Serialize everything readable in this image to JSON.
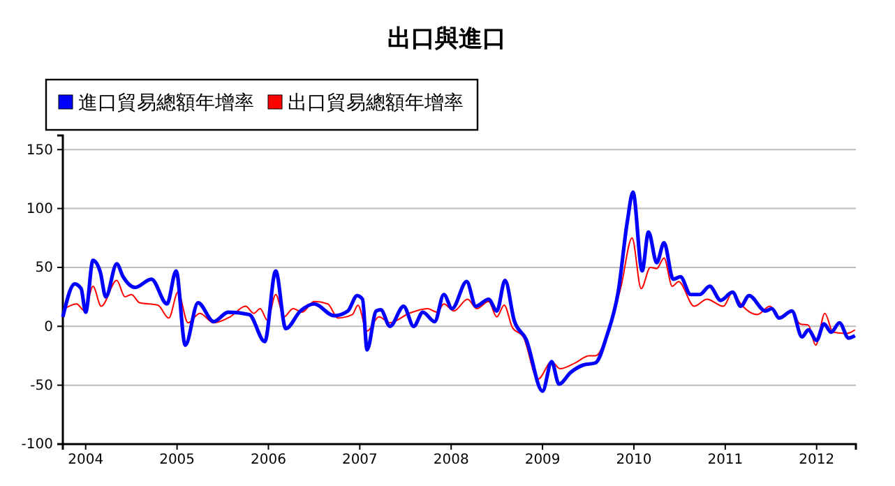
{
  "chart_data": {
    "type": "line",
    "title": "出口與進口",
    "xlim": [
      2003.75,
      2012.43
    ],
    "xticks": [
      2004,
      2005,
      2006,
      2007,
      2008,
      2009,
      2010,
      2011,
      2012
    ],
    "ylim": [
      -100,
      162
    ],
    "yticks": [
      -100,
      -50,
      0,
      50,
      100,
      150
    ],
    "grid": "y",
    "legend": "top left",
    "marker": "none",
    "line_style": "solid",
    "series": [
      {
        "name": "進口貿易總額年增率",
        "color": "#0000ff",
        "x": [
          2003.75,
          2003.88,
          2003.95,
          2004.0,
          2004.08,
          2004.16,
          2004.22,
          2004.34,
          2004.41,
          2004.54,
          2004.72,
          2004.89,
          2004.99,
          2005.09,
          2005.23,
          2005.4,
          2005.56,
          2005.79,
          2005.96,
          2006.08,
          2006.19,
          2006.35,
          2006.5,
          2006.72,
          2006.87,
          2006.97,
          2007.03,
          2007.08,
          2007.18,
          2007.23,
          2007.33,
          2007.48,
          2007.59,
          2007.69,
          2007.82,
          2007.92,
          2008.01,
          2008.17,
          2008.27,
          2008.41,
          2008.5,
          2008.59,
          2008.69,
          2008.82,
          2009.0,
          2009.1,
          2009.18,
          2009.31,
          2009.44,
          2009.58,
          2009.7,
          2009.83,
          2009.93,
          2009.99,
          2010.09,
          2010.16,
          2010.25,
          2010.33,
          2010.43,
          2010.51,
          2010.62,
          2010.72,
          2010.83,
          2010.95,
          2011.08,
          2011.17,
          2011.26,
          2011.44,
          2011.51,
          2011.59,
          2011.73,
          2011.84,
          2011.91,
          2012.0,
          2012.08,
          2012.16,
          2012.25,
          2012.35,
          2012.42
        ],
        "values": [
          8,
          36,
          32,
          12,
          56,
          46,
          25,
          53,
          42,
          33,
          40,
          19,
          47,
          -16,
          20,
          4,
          12,
          10,
          -13,
          47,
          -2,
          13,
          19,
          9,
          13,
          26,
          23,
          -20,
          13,
          14,
          0,
          17,
          0,
          12,
          4,
          27,
          15,
          38,
          17,
          23,
          13,
          39,
          5,
          -11,
          -55,
          -30,
          -49,
          -39,
          -33,
          -31,
          -9,
          30,
          90,
          114,
          47,
          80,
          54,
          71,
          40,
          42,
          27,
          27,
          34,
          22,
          29,
          17,
          26,
          13,
          15,
          7,
          13,
          -9,
          -3,
          -12,
          2,
          -5,
          3,
          -10,
          -8
        ]
      },
      {
        "name": "出口貿易總額年增率",
        "color": "#ff0000",
        "x": [
          2003.75,
          2003.9,
          2003.99,
          2004.08,
          2004.17,
          2004.34,
          2004.43,
          2004.5,
          2004.59,
          2004.79,
          2004.91,
          2005.01,
          2005.12,
          2005.25,
          2005.4,
          2005.58,
          2005.75,
          2005.84,
          2005.91,
          2005.99,
          2006.08,
          2006.17,
          2006.27,
          2006.37,
          2006.5,
          2006.65,
          2006.76,
          2006.92,
          2006.98,
          2007.08,
          2007.21,
          2007.33,
          2007.54,
          2007.74,
          2007.85,
          2007.92,
          2008.03,
          2008.18,
          2008.28,
          2008.41,
          2008.5,
          2008.58,
          2008.67,
          2008.79,
          2008.95,
          2009.1,
          2009.19,
          2009.36,
          2009.51,
          2009.58,
          2009.7,
          2009.86,
          2009.98,
          2010.08,
          2010.18,
          2010.25,
          2010.33,
          2010.42,
          2010.49,
          2010.66,
          2010.8,
          2010.98,
          2011.08,
          2011.17,
          2011.35,
          2011.49,
          2011.59,
          2011.72,
          2011.82,
          2011.91,
          2011.99,
          2012.09,
          2012.18,
          2012.33,
          2012.42
        ],
        "values": [
          14,
          19,
          13,
          34,
          17,
          39,
          25,
          27,
          20,
          18,
          7,
          29,
          3,
          11,
          3,
          8,
          17,
          11,
          15,
          5,
          27,
          8,
          15,
          12,
          21,
          19,
          7,
          10,
          18,
          -4,
          8,
          3,
          11,
          15,
          12,
          19,
          13,
          23,
          15,
          21,
          8,
          18,
          -1,
          -9,
          -45,
          -30,
          -36,
          -31,
          -25,
          -25,
          -9,
          34,
          75,
          32,
          50,
          49,
          58,
          34,
          38,
          17,
          23,
          17,
          29,
          19,
          10,
          17,
          8,
          13,
          2,
          1,
          -16,
          11,
          -5,
          -6,
          -3
        ]
      }
    ]
  }
}
